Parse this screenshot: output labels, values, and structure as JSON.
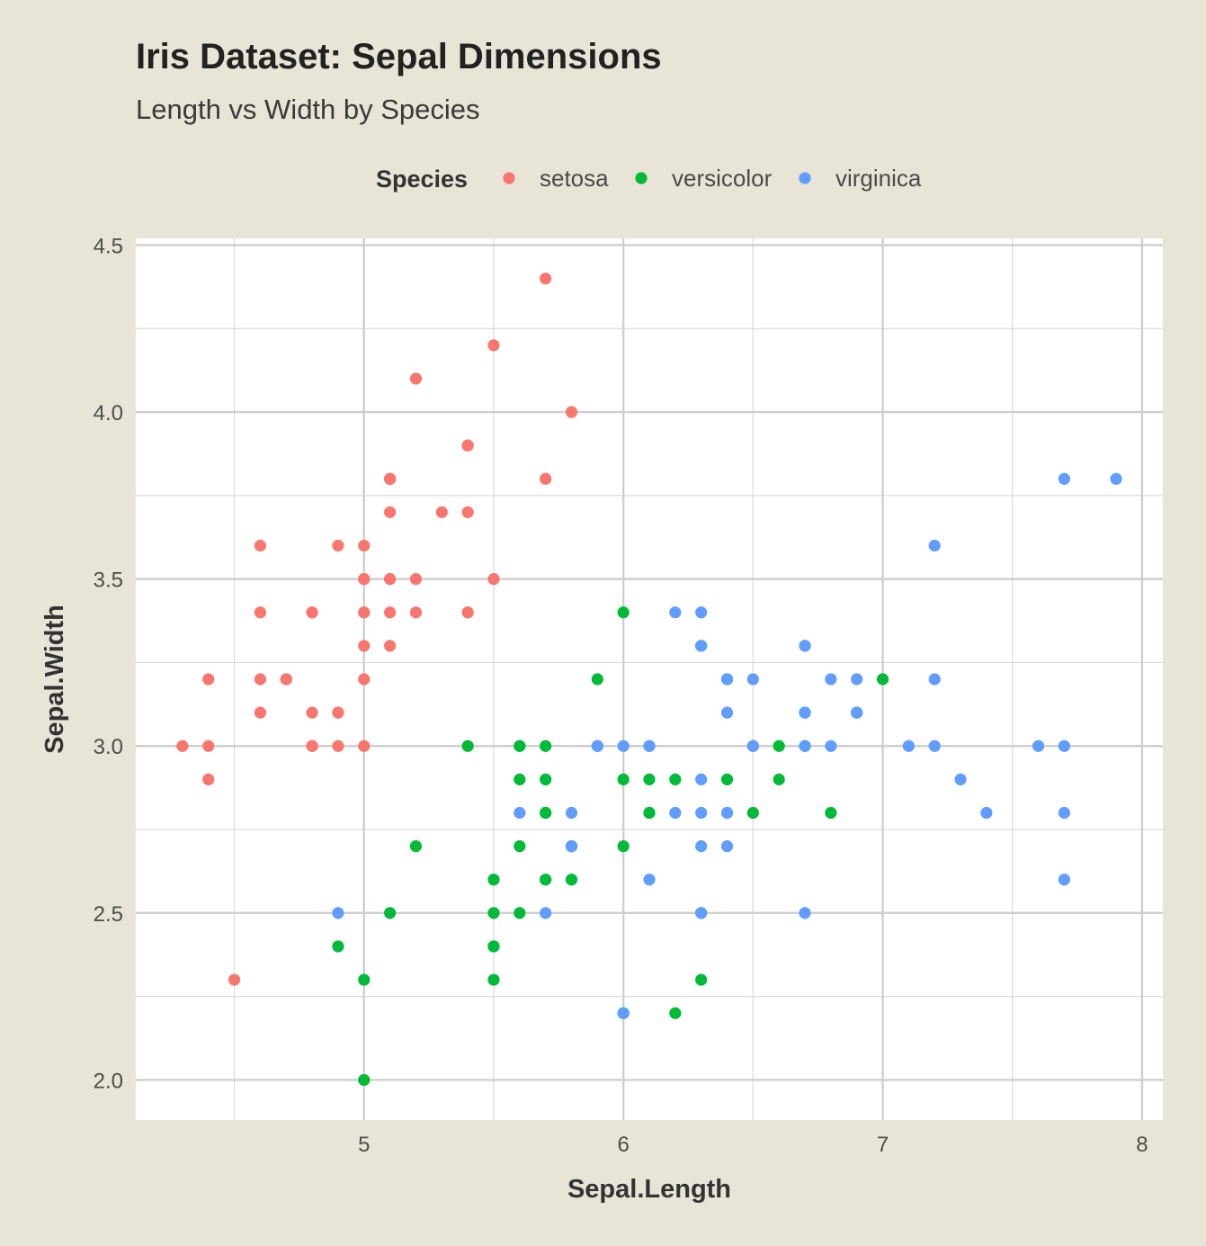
{
  "chart_data": {
    "type": "scatter",
    "title": "Iris Dataset: Sepal Dimensions",
    "subtitle": "Length vs Width by Species",
    "xlabel": "Sepal.Length",
    "ylabel": "Sepal.Width",
    "xlim": [
      4.12,
      8.08
    ],
    "ylim": [
      1.88,
      4.52
    ],
    "x_ticks": [
      5,
      6,
      7,
      8
    ],
    "x_tick_labels": [
      "5",
      "6",
      "7",
      "8"
    ],
    "y_ticks": [
      2.0,
      2.5,
      3.0,
      3.5,
      4.0,
      4.5
    ],
    "y_tick_labels": [
      "2.0",
      "2.5",
      "3.0",
      "3.5",
      "4.0",
      "4.5"
    ],
    "grid": true,
    "legend": {
      "title": "Species",
      "placement": "top"
    },
    "series": [
      {
        "name": "setosa",
        "color": "#F8766D",
        "points": [
          [
            5.1,
            3.5
          ],
          [
            4.9,
            3.0
          ],
          [
            4.7,
            3.2
          ],
          [
            4.6,
            3.1
          ],
          [
            5.0,
            3.6
          ],
          [
            5.4,
            3.9
          ],
          [
            4.6,
            3.4
          ],
          [
            5.0,
            3.4
          ],
          [
            4.4,
            2.9
          ],
          [
            4.9,
            3.1
          ],
          [
            5.4,
            3.7
          ],
          [
            4.8,
            3.4
          ],
          [
            4.8,
            3.0
          ],
          [
            4.3,
            3.0
          ],
          [
            5.8,
            4.0
          ],
          [
            5.7,
            4.4
          ],
          [
            5.4,
            3.9
          ],
          [
            5.1,
            3.5
          ],
          [
            5.7,
            3.8
          ],
          [
            5.1,
            3.8
          ],
          [
            5.4,
            3.4
          ],
          [
            5.1,
            3.7
          ],
          [
            4.6,
            3.6
          ],
          [
            5.1,
            3.3
          ],
          [
            4.8,
            3.4
          ],
          [
            5.0,
            3.0
          ],
          [
            5.0,
            3.4
          ],
          [
            5.2,
            3.5
          ],
          [
            5.2,
            3.4
          ],
          [
            4.7,
            3.2
          ],
          [
            4.8,
            3.1
          ],
          [
            5.4,
            3.4
          ],
          [
            5.2,
            4.1
          ],
          [
            5.5,
            4.2
          ],
          [
            4.9,
            3.1
          ],
          [
            5.0,
            3.2
          ],
          [
            5.5,
            3.5
          ],
          [
            4.9,
            3.6
          ],
          [
            4.4,
            3.0
          ],
          [
            5.1,
            3.4
          ],
          [
            5.0,
            3.5
          ],
          [
            4.5,
            2.3
          ],
          [
            4.4,
            3.2
          ],
          [
            5.0,
            3.5
          ],
          [
            5.1,
            3.8
          ],
          [
            4.8,
            3.0
          ],
          [
            5.1,
            3.8
          ],
          [
            4.6,
            3.2
          ],
          [
            5.3,
            3.7
          ],
          [
            5.0,
            3.3
          ]
        ]
      },
      {
        "name": "versicolor",
        "color": "#00BA38",
        "points": [
          [
            7.0,
            3.2
          ],
          [
            6.4,
            3.2
          ],
          [
            6.9,
            3.1
          ],
          [
            5.5,
            2.3
          ],
          [
            6.5,
            2.8
          ],
          [
            5.7,
            2.8
          ],
          [
            6.3,
            3.3
          ],
          [
            4.9,
            2.4
          ],
          [
            6.6,
            2.9
          ],
          [
            5.2,
            2.7
          ],
          [
            5.0,
            2.0
          ],
          [
            5.9,
            3.0
          ],
          [
            6.0,
            2.2
          ],
          [
            6.1,
            2.9
          ],
          [
            5.6,
            2.9
          ],
          [
            6.7,
            3.1
          ],
          [
            5.6,
            3.0
          ],
          [
            5.8,
            2.7
          ],
          [
            6.2,
            2.2
          ],
          [
            5.6,
            2.5
          ],
          [
            5.9,
            3.2
          ],
          [
            6.1,
            2.8
          ],
          [
            6.3,
            2.5
          ],
          [
            6.1,
            2.8
          ],
          [
            6.4,
            2.9
          ],
          [
            6.6,
            3.0
          ],
          [
            6.8,
            2.8
          ],
          [
            6.7,
            3.0
          ],
          [
            6.0,
            2.9
          ],
          [
            5.7,
            2.6
          ],
          [
            5.5,
            2.4
          ],
          [
            5.5,
            2.4
          ],
          [
            5.8,
            2.7
          ],
          [
            6.0,
            2.7
          ],
          [
            5.4,
            3.0
          ],
          [
            6.0,
            3.4
          ],
          [
            6.7,
            3.1
          ],
          [
            6.3,
            2.3
          ],
          [
            5.6,
            3.0
          ],
          [
            5.5,
            2.5
          ],
          [
            5.5,
            2.6
          ],
          [
            6.1,
            3.0
          ],
          [
            5.8,
            2.6
          ],
          [
            5.0,
            2.3
          ],
          [
            5.6,
            2.7
          ],
          [
            5.7,
            3.0
          ],
          [
            5.7,
            2.9
          ],
          [
            6.2,
            2.9
          ],
          [
            5.1,
            2.5
          ],
          [
            5.7,
            2.8
          ]
        ]
      },
      {
        "name": "virginica",
        "color": "#619CFF",
        "points": [
          [
            6.3,
            3.3
          ],
          [
            5.8,
            2.7
          ],
          [
            7.1,
            3.0
          ],
          [
            6.3,
            2.9
          ],
          [
            6.5,
            3.0
          ],
          [
            7.6,
            3.0
          ],
          [
            4.9,
            2.5
          ],
          [
            7.3,
            2.9
          ],
          [
            6.7,
            2.5
          ],
          [
            7.2,
            3.6
          ],
          [
            6.5,
            3.2
          ],
          [
            6.4,
            2.7
          ],
          [
            6.8,
            3.0
          ],
          [
            5.7,
            2.5
          ],
          [
            5.8,
            2.8
          ],
          [
            6.4,
            3.2
          ],
          [
            6.5,
            3.0
          ],
          [
            7.7,
            3.8
          ],
          [
            7.7,
            2.6
          ],
          [
            6.0,
            2.2
          ],
          [
            6.9,
            3.2
          ],
          [
            5.6,
            2.8
          ],
          [
            7.7,
            2.8
          ],
          [
            6.3,
            2.7
          ],
          [
            6.7,
            3.3
          ],
          [
            7.2,
            3.2
          ],
          [
            6.2,
            2.8
          ],
          [
            6.1,
            3.0
          ],
          [
            6.4,
            2.8
          ],
          [
            7.2,
            3.0
          ],
          [
            7.4,
            2.8
          ],
          [
            7.9,
            3.8
          ],
          [
            6.4,
            2.8
          ],
          [
            6.3,
            2.8
          ],
          [
            6.1,
            2.6
          ],
          [
            7.7,
            3.0
          ],
          [
            6.3,
            3.4
          ],
          [
            6.4,
            3.1
          ],
          [
            6.0,
            3.0
          ],
          [
            6.9,
            3.1
          ],
          [
            6.7,
            3.1
          ],
          [
            6.9,
            3.1
          ],
          [
            5.8,
            2.7
          ],
          [
            6.8,
            3.2
          ],
          [
            6.7,
            3.3
          ],
          [
            6.7,
            3.0
          ],
          [
            6.3,
            2.5
          ],
          [
            6.5,
            3.0
          ],
          [
            6.2,
            3.4
          ],
          [
            5.9,
            3.0
          ]
        ]
      }
    ]
  }
}
